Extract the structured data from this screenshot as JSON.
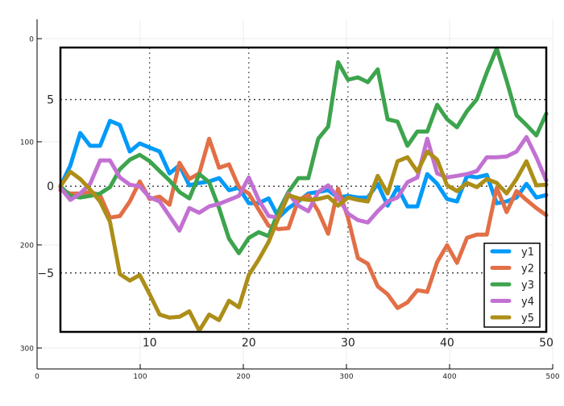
{
  "chart_data": [
    {
      "type": "heatmap",
      "role": "background axis",
      "xlim": [
        0,
        500
      ],
      "ylim": [
        0,
        300
      ],
      "y_inverted": true,
      "x_ticks": [
        0,
        100,
        200,
        300,
        400,
        500
      ],
      "y_ticks": [
        0,
        100,
        200,
        300
      ],
      "x_tick_labels": [
        "0",
        "100",
        "200",
        "300",
        "400",
        "500"
      ],
      "y_tick_labels": [
        "0",
        "100",
        "200",
        "300"
      ],
      "grid": true
    },
    {
      "type": "line",
      "xlim": [
        1,
        50
      ],
      "ylim": [
        -8.4,
        8.0
      ],
      "x_ticks": [
        10,
        20,
        30,
        40,
        50
      ],
      "y_ticks": [
        -5,
        0,
        5
      ],
      "x_tick_labels": [
        "10",
        "20",
        "30",
        "40",
        "50"
      ],
      "y_tick_labels": [
        "−5",
        "0",
        "5"
      ],
      "grid": true,
      "grid_style": "dotted",
      "legend_position": "bottom-right",
      "x": [
        1,
        2,
        3,
        4,
        5,
        6,
        7,
        8,
        9,
        10,
        11,
        12,
        13,
        14,
        15,
        16,
        17,
        18,
        19,
        20,
        21,
        22,
        23,
        24,
        25,
        26,
        27,
        28,
        29,
        30,
        31,
        32,
        33,
        34,
        35,
        36,
        37,
        38,
        39,
        40,
        41,
        42,
        43,
        44,
        45,
        46,
        47,
        48,
        49,
        50
      ],
      "series": [
        {
          "name": "y1",
          "color": "#009af9",
          "values": [
            0,
            1.2,
            3.07,
            2.33,
            2.33,
            3.77,
            3.53,
            2.0,
            2.47,
            2.23,
            2.0,
            0.74,
            1.21,
            0.05,
            0.19,
            0.28,
            0.47,
            -0.23,
            -0.09,
            -0.98,
            -0.98,
            -0.7,
            -1.8,
            -1.26,
            -0.88,
            -0.42,
            -0.33,
            -0.23,
            -0.65,
            -0.56,
            -0.65,
            -0.65,
            0.14,
            -1.12,
            -0.05,
            -1.16,
            -1.16,
            0.7,
            0.14,
            -0.74,
            -0.88,
            0.6,
            0.51,
            0.65,
            -0.98,
            -0.88,
            -0.65,
            0.14,
            -0.65,
            -0.51
          ]
        },
        {
          "name": "y2",
          "color": "#e26f46",
          "values": [
            -0.23,
            -0.42,
            -0.42,
            -0.33,
            -0.51,
            -1.81,
            -1.72,
            -0.88,
            0.28,
            -0.74,
            -0.6,
            -1.07,
            1.35,
            0.42,
            0.74,
            2.74,
            1.07,
            1.26,
            -0.05,
            -0.42,
            -1.35,
            -2.28,
            -2.47,
            -2.42,
            -0.79,
            -0.51,
            -1.44,
            -2.74,
            -0.14,
            -1.81,
            -4.14,
            -4.47,
            -5.77,
            -6.23,
            -7.02,
            -6.7,
            -6.0,
            -6.09,
            -4.37,
            -3.4,
            -4.42,
            -2.98,
            -2.79,
            -2.79,
            -0.09,
            -1.49,
            -0.28,
            -0.79,
            -1.26,
            -1.67
          ]
        },
        {
          "name": "y3",
          "color": "#3da44d",
          "values": [
            0,
            -0.56,
            -0.65,
            -0.56,
            -0.42,
            -0.05,
            0.98,
            1.53,
            1.81,
            1.44,
            0.88,
            0.33,
            -0.33,
            -0.7,
            0.7,
            0.23,
            -1.26,
            -3.02,
            -3.86,
            -2.98,
            -2.65,
            -2.88,
            -1.44,
            -0.33,
            0.47,
            0.47,
            2.74,
            3.44,
            7.16,
            6.14,
            6.28,
            6.0,
            6.74,
            3.86,
            3.72,
            2.33,
            3.16,
            3.16,
            4.7,
            3.86,
            3.4,
            4.33,
            5.02,
            6.56,
            7.95,
            6.09,
            4.09,
            3.53,
            2.93,
            4.19
          ]
        },
        {
          "name": "y4",
          "color": "#c271d2",
          "values": [
            -0.09,
            -0.79,
            -0.42,
            0.14,
            1.49,
            1.49,
            0.51,
            0.09,
            0,
            -0.65,
            -0.88,
            -1.72,
            -2.56,
            -1.26,
            -1.53,
            -1.16,
            -1.02,
            -0.79,
            -0.56,
            0.51,
            -0.79,
            -1.72,
            -1.81,
            -0.42,
            -1.12,
            -1.44,
            -0.33,
            0.05,
            -0.65,
            -1.58,
            -1.95,
            -2.09,
            -1.44,
            -0.88,
            -0.65,
            0.23,
            0.51,
            2.74,
            0.74,
            0.51,
            0.6,
            0.7,
            0.88,
            1.67,
            1.67,
            1.72,
            2.0,
            2.84,
            1.67,
            0.33
          ]
        },
        {
          "name": "y5",
          "color": "#ac8e18",
          "values": [
            0,
            0.84,
            0.42,
            -0.19,
            -0.88,
            -2.05,
            -5.07,
            -5.44,
            -5.12,
            -6.23,
            -7.4,
            -7.58,
            -7.53,
            -7.21,
            -8.33,
            -7.4,
            -7.72,
            -6.6,
            -6.98,
            -5.12,
            -4.23,
            -3.21,
            -1.81,
            -0.51,
            -0.7,
            -0.79,
            -0.74,
            -0.6,
            -1.12,
            -0.65,
            -0.79,
            -0.88,
            0.6,
            -0.42,
            1.44,
            1.67,
            0.84,
            2.0,
            1.53,
            0.05,
            -0.28,
            0.19,
            -0.05,
            0.42,
            0.19,
            -0.42,
            0.42,
            1.44,
            0.05,
            0.09
          ]
        }
      ]
    }
  ]
}
